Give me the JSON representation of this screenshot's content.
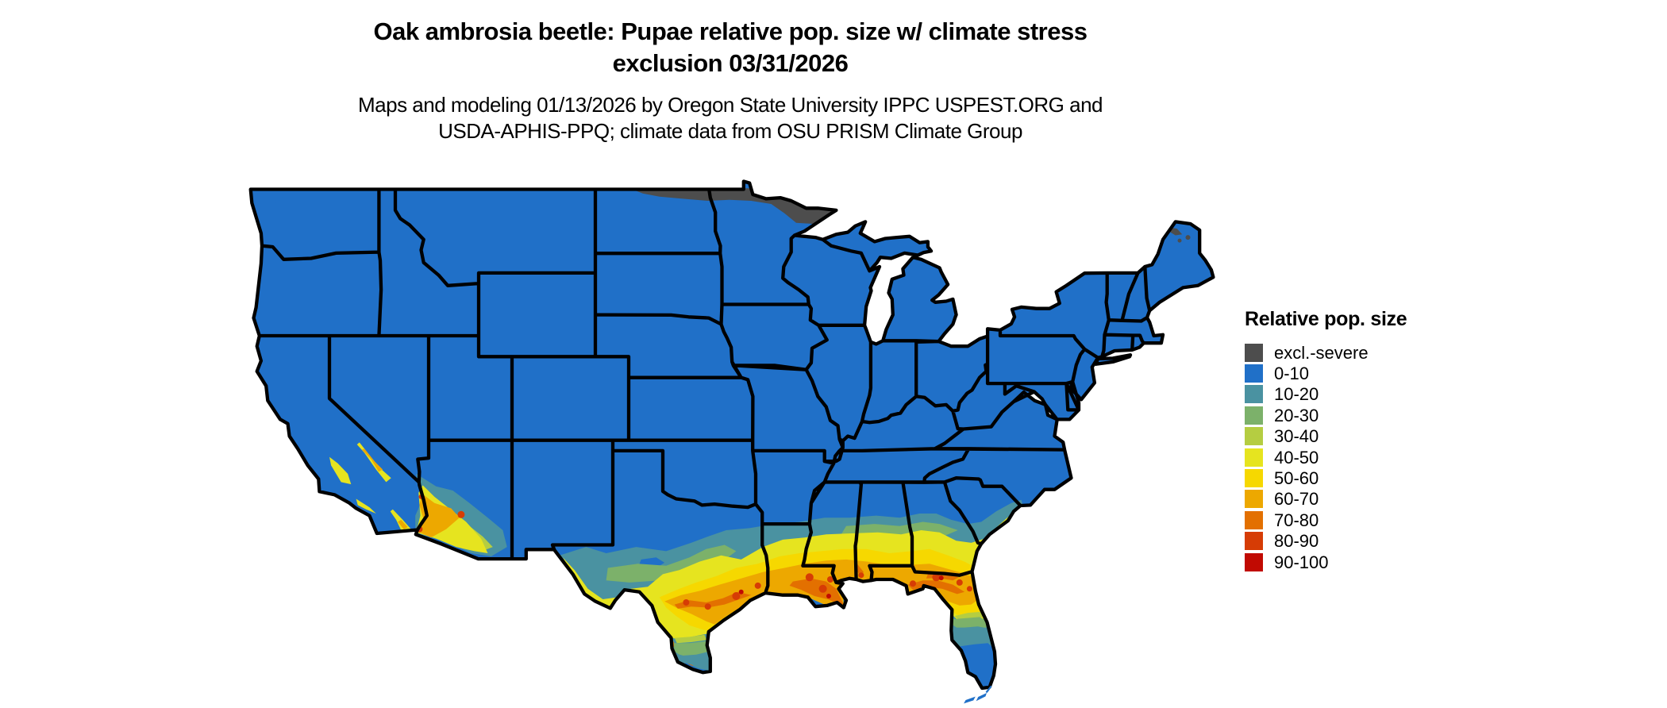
{
  "header": {
    "title_line1": "Oak ambrosia beetle: Pupae relative pop. size w/ climate stress",
    "title_line2": "exclusion 03/31/2026",
    "subtitle_line1": "Maps and modeling 01/13/2026 by Oregon State University IPPC USPEST.ORG and",
    "subtitle_line2": "USDA-APHIS-PPQ; climate data from OSU PRISM Climate Group"
  },
  "legend": {
    "title": "Relative pop. size",
    "items": [
      {
        "key": "excl",
        "label": "excl.-severe",
        "color": "#4d4d4d"
      },
      {
        "key": "c0",
        "label": "0-10",
        "color": "#2070c8"
      },
      {
        "key": "c10",
        "label": "10-20",
        "color": "#4a92a1"
      },
      {
        "key": "c20",
        "label": "20-30",
        "color": "#7cb16a"
      },
      {
        "key": "c30",
        "label": "30-40",
        "color": "#b5cd41"
      },
      {
        "key": "c40",
        "label": "40-50",
        "color": "#e6e41f"
      },
      {
        "key": "c50",
        "label": "50-60",
        "color": "#f6d800"
      },
      {
        "key": "c60",
        "label": "60-70",
        "color": "#eda800"
      },
      {
        "key": "c70",
        "label": "70-80",
        "color": "#e37000"
      },
      {
        "key": "c80",
        "label": "80-90",
        "color": "#d63c05"
      },
      {
        "key": "c90",
        "label": "90-100",
        "color": "#c10a02"
      }
    ]
  },
  "map": {
    "base_class_key": "c0",
    "border_color": "#000000",
    "water_color": "#ffffff",
    "background_color": "#ffffff"
  }
}
